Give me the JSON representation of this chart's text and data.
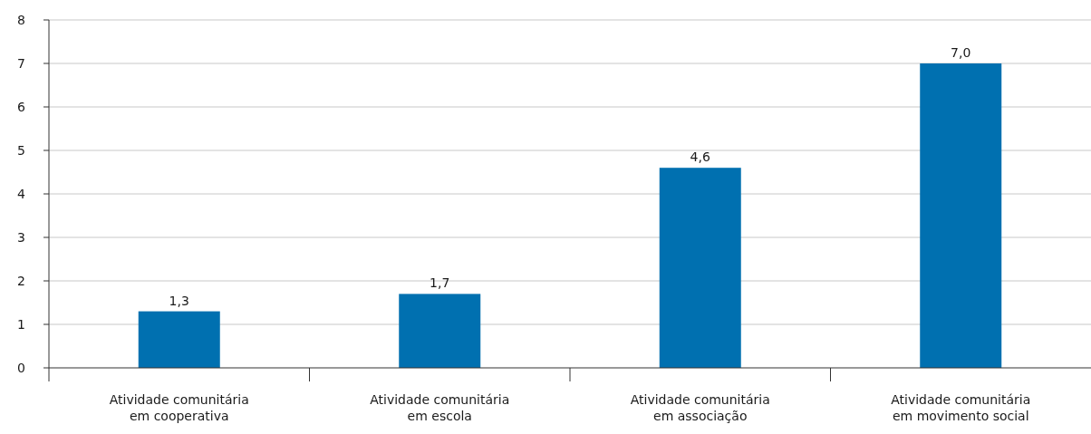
{
  "chart_data": {
    "type": "bar",
    "categories": [
      "Atividade comunitária em cooperativa",
      "Atividade comunitária em escola",
      "Atividade comunitária em associação",
      "Atividade comunitária em movimento social"
    ],
    "values": [
      1.3,
      1.7,
      4.6,
      7.0
    ],
    "value_labels": [
      "1,3",
      "1,7",
      "4,6",
      "7,0"
    ],
    "color": "#0070b0",
    "ylim": [
      0,
      8
    ],
    "yticks": [
      0,
      1,
      2,
      3,
      4,
      5,
      6,
      7,
      8
    ],
    "grid": "y"
  }
}
